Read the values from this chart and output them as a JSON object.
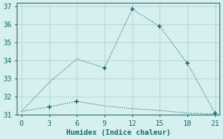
{
  "xlabel": "Humidex (Indice chaleur)",
  "background_color": "#d6efef",
  "grid_color": "#b8d8d8",
  "line_color": "#1a6b6b",
  "x_main": [
    0,
    3,
    6,
    9,
    12,
    15,
    18,
    21
  ],
  "y_main": [
    31.2,
    32.8,
    34.1,
    33.6,
    36.85,
    35.9,
    33.85,
    31.1
  ],
  "x_flat": [
    0,
    3,
    6,
    9,
    12,
    15,
    18,
    21
  ],
  "y_flat": [
    31.2,
    31.45,
    31.75,
    31.5,
    31.35,
    31.25,
    31.1,
    31.05
  ],
  "xlim": [
    -0.5,
    21.5
  ],
  "ylim": [
    31,
    37.2
  ],
  "xticks": [
    0,
    3,
    6,
    9,
    12,
    15,
    18,
    21
  ],
  "yticks": [
    31,
    32,
    33,
    34,
    35,
    36,
    37
  ],
  "fontname": "monospace",
  "fontsize": 7.5,
  "marker_main": [
    9,
    12,
    15,
    18,
    21
  ],
  "marker_flat": [
    3,
    6
  ]
}
